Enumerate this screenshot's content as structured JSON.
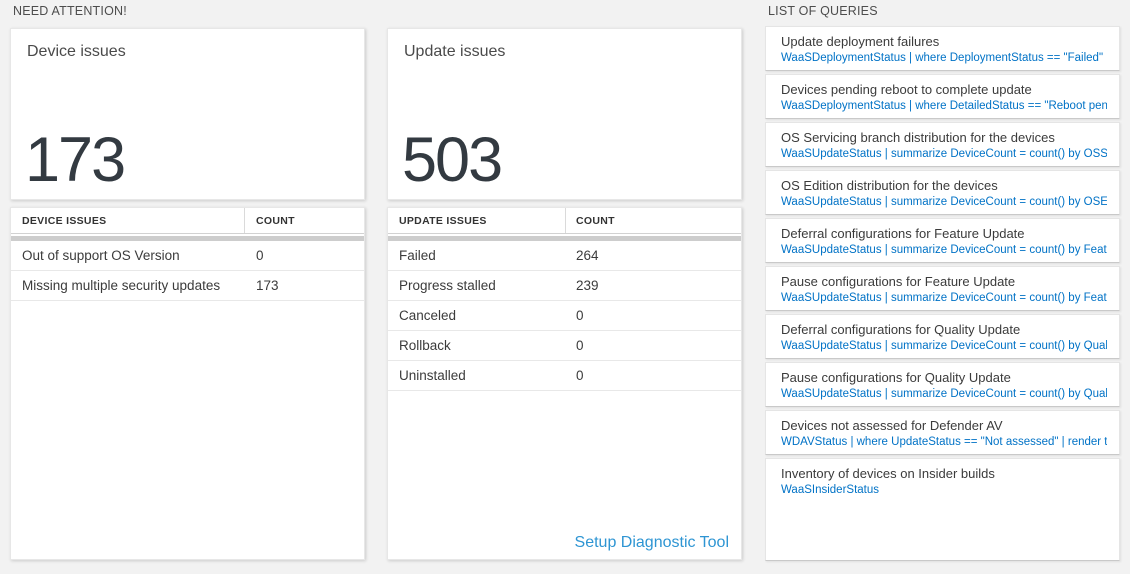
{
  "need_attention": {
    "header": "NEED ATTENTION!"
  },
  "device_card": {
    "title": "Device issues",
    "big_number": "173",
    "columns": [
      "DEVICE ISSUES",
      "COUNT"
    ],
    "rows": [
      {
        "label": "Out of support OS Version",
        "count": "0"
      },
      {
        "label": "Missing multiple security updates",
        "count": "173"
      }
    ]
  },
  "update_card": {
    "title": "Update issues",
    "big_number": "503",
    "columns": [
      "UPDATE ISSUES",
      "COUNT"
    ],
    "rows": [
      {
        "label": "Failed",
        "count": "264"
      },
      {
        "label": "Progress stalled",
        "count": "239"
      },
      {
        "label": "Canceled",
        "count": "0"
      },
      {
        "label": "Rollback",
        "count": "0"
      },
      {
        "label": "Uninstalled",
        "count": "0"
      }
    ],
    "footer_link": "Setup Diagnostic Tool"
  },
  "query_list": {
    "header": "LIST OF QUERIES",
    "items": [
      {
        "title": "Update deployment failures",
        "query": "WaaSDeploymentStatus | where DeploymentStatus == \"Failed\" |..."
      },
      {
        "title": "Devices pending reboot to complete update",
        "query": "WaaSDeploymentStatus | where DetailedStatus == \"Reboot pend..."
      },
      {
        "title": "OS Servicing branch distribution for the devices",
        "query": "WaaSUpdateStatus | summarize DeviceCount = count() by OSSer..."
      },
      {
        "title": "OS Edition distribution for the devices",
        "query": "WaaSUpdateStatus | summarize DeviceCount = count() by OSEdit..."
      },
      {
        "title": "Deferral configurations for Feature Update",
        "query": "WaaSUpdateStatus | summarize DeviceCount = count() by Featur..."
      },
      {
        "title": "Pause configurations for Feature Update",
        "query": "WaaSUpdateStatus | summarize DeviceCount = count() by Featur..."
      },
      {
        "title": "Deferral configurations for Quality Update",
        "query": "WaaSUpdateStatus | summarize DeviceCount = count() by Qualit..."
      },
      {
        "title": "Pause configurations for Quality Update",
        "query": "WaaSUpdateStatus | summarize DeviceCount = count() by Qualit..."
      },
      {
        "title": "Devices not assessed for Defender AV",
        "query": "WDAVStatus | where UpdateStatus == \"Not assessed\" | render ta..."
      },
      {
        "title": "Inventory of devices on Insider builds",
        "query": "WaaSInsiderStatus"
      }
    ]
  },
  "colors": {
    "page_bg": "#f2f2f2",
    "query_link_blue": "#0072c6",
    "action_link_blue": "#2e95d3",
    "big_number_color": "#333a41",
    "scroll_band": "#cdcdcd"
  }
}
